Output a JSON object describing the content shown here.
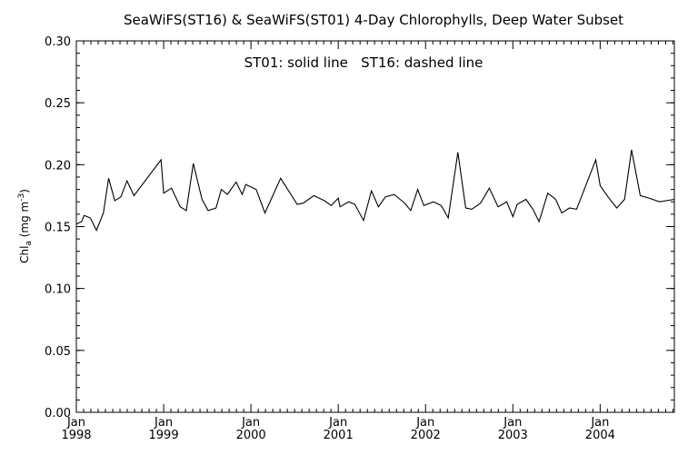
{
  "chart_data": {
    "type": "line",
    "title": "SeaWiFS(ST16) & SeaWiFS(ST01) 4-Day Chlorophylls, Deep Water Subset",
    "annotation": "ST01: solid line   ST16: dashed line",
    "ylabel": "Chl",
    "ylabel_sub": "a",
    "ylabel_unit_open": " (mg m",
    "ylabel_unit_sup": "-3",
    "ylabel_unit_close": ")",
    "xlim": [
      1998.0,
      2004.85
    ],
    "ylim": [
      0.0,
      0.3
    ],
    "y_ticks": [
      "0.00",
      "0.05",
      "0.10",
      "0.15",
      "0.20",
      "0.25",
      "0.30"
    ],
    "x_ticks": [
      {
        "x": 1998,
        "month": "Jan",
        "year": "1998"
      },
      {
        "x": 1999,
        "month": "Jan",
        "year": "1999"
      },
      {
        "x": 2000,
        "month": "Jan",
        "year": "2000"
      },
      {
        "x": 2001,
        "month": "Jan",
        "year": "2001"
      },
      {
        "x": 2002,
        "month": "Jan",
        "year": "2002"
      },
      {
        "x": 2003,
        "month": "Jan",
        "year": "2003"
      },
      {
        "x": 2004,
        "month": "Jan",
        "year": "2004"
      }
    ],
    "grid": false,
    "series": [
      {
        "line_style": "solid",
        "color": "#000000",
        "points": [
          [
            1998.0,
            0.152
          ],
          [
            1998.06,
            0.154
          ],
          [
            1998.09,
            0.159
          ],
          [
            1998.16,
            0.157
          ],
          [
            1998.23,
            0.147
          ],
          [
            1998.31,
            0.161
          ],
          [
            1998.37,
            0.189
          ],
          [
            1998.44,
            0.171
          ],
          [
            1998.51,
            0.174
          ],
          [
            1998.58,
            0.187
          ],
          [
            1998.66,
            0.175
          ],
          [
            1998.97,
            0.204
          ],
          [
            1999.0,
            0.177
          ],
          [
            1999.09,
            0.181
          ],
          [
            1999.19,
            0.166
          ],
          [
            1999.26,
            0.163
          ],
          [
            1999.34,
            0.201
          ],
          [
            1999.44,
            0.172
          ],
          [
            1999.51,
            0.163
          ],
          [
            1999.6,
            0.165
          ],
          [
            1999.66,
            0.18
          ],
          [
            1999.73,
            0.176
          ],
          [
            1999.83,
            0.186
          ],
          [
            1999.9,
            0.176
          ],
          [
            1999.94,
            0.184
          ],
          [
            2000.06,
            0.18
          ],
          [
            2000.16,
            0.161
          ],
          [
            2000.34,
            0.189
          ],
          [
            2000.53,
            0.168
          ],
          [
            2000.6,
            0.169
          ],
          [
            2000.72,
            0.175
          ],
          [
            2000.84,
            0.171
          ],
          [
            2000.92,
            0.167
          ],
          [
            2001.0,
            0.173
          ],
          [
            2001.02,
            0.166
          ],
          [
            2001.12,
            0.17
          ],
          [
            2001.19,
            0.168
          ],
          [
            2001.29,
            0.155
          ],
          [
            2001.38,
            0.179
          ],
          [
            2001.46,
            0.166
          ],
          [
            2001.54,
            0.174
          ],
          [
            2001.64,
            0.176
          ],
          [
            2001.76,
            0.169
          ],
          [
            2001.83,
            0.163
          ],
          [
            2001.91,
            0.18
          ],
          [
            2001.98,
            0.167
          ],
          [
            2002.09,
            0.17
          ],
          [
            2002.18,
            0.167
          ],
          [
            2002.26,
            0.157
          ],
          [
            2002.37,
            0.21
          ],
          [
            2002.46,
            0.165
          ],
          [
            2002.53,
            0.164
          ],
          [
            2002.63,
            0.169
          ],
          [
            2002.73,
            0.181
          ],
          [
            2002.83,
            0.166
          ],
          [
            2002.93,
            0.17
          ],
          [
            2003.0,
            0.158
          ],
          [
            2003.05,
            0.168
          ],
          [
            2003.15,
            0.172
          ],
          [
            2003.23,
            0.164
          ],
          [
            2003.3,
            0.154
          ],
          [
            2003.4,
            0.177
          ],
          [
            2003.49,
            0.172
          ],
          [
            2003.56,
            0.161
          ],
          [
            2003.65,
            0.165
          ],
          [
            2003.73,
            0.164
          ],
          [
            2003.95,
            0.204
          ],
          [
            2004.0,
            0.183
          ],
          [
            2004.09,
            0.174
          ],
          [
            2004.19,
            0.165
          ],
          [
            2004.28,
            0.172
          ],
          [
            2004.36,
            0.212
          ],
          [
            2004.46,
            0.175
          ],
          [
            2004.56,
            0.173
          ],
          [
            2004.68,
            0.17
          ],
          [
            2004.85,
            0.172
          ]
        ]
      }
    ]
  }
}
